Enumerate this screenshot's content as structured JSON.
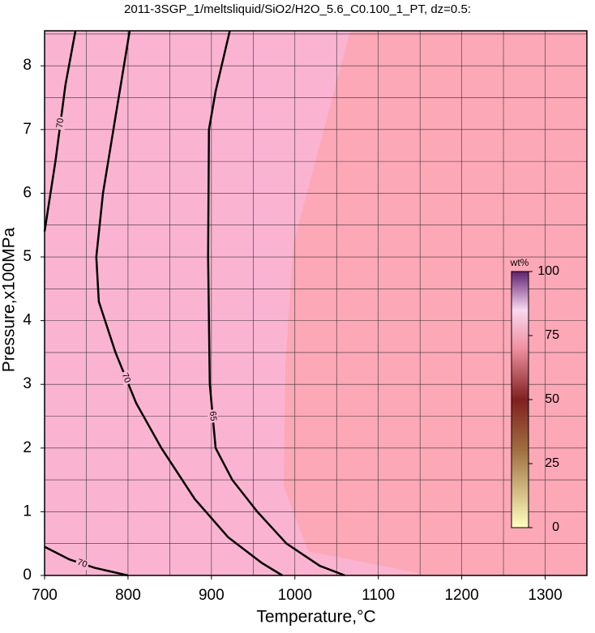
{
  "chart_data": {
    "type": "contour",
    "title": "2011-3SGP_1/meltsliquid/SiO2/H2O_5.6_C0.100_1_PT, dz=0.5:",
    "x_label": "Temperature,°C",
    "y_label": "Pressure,x100MPa",
    "xlim": [
      700,
      1350
    ],
    "ylim": [
      0,
      8.55
    ],
    "xticks": [
      700,
      800,
      900,
      1000,
      1100,
      1200,
      1300
    ],
    "yticks": [
      0,
      1,
      2,
      3,
      4,
      5,
      6,
      7,
      8
    ],
    "xgrid": [
      750,
      800,
      850,
      900,
      950,
      1000,
      1050,
      1100,
      1150,
      1200,
      1250,
      1300
    ],
    "ygrid": [
      0.5,
      1,
      1.5,
      2,
      2.5,
      3,
      3.5,
      4,
      4.5,
      5,
      5.5,
      6,
      6.5,
      7,
      7.5,
      8,
      8.5
    ],
    "contours": [
      {
        "level": "70",
        "x": [
          802,
          785,
          770,
          762,
          765,
          785,
          810,
          840,
          880,
          920,
          960,
          985
        ],
        "y": [
          8.55,
          7.2,
          6,
          5,
          4.3,
          3.5,
          2.7,
          2,
          1.2,
          0.6,
          0.2,
          0
        ]
      },
      {
        "level": "70",
        "x": [
          737,
          725,
          713,
          700
        ],
        "y": [
          8.55,
          7.7,
          6.5,
          5.4
        ]
      },
      {
        "level": "70",
        "x": [
          700,
          730,
          760,
          800
        ],
        "y": [
          0.45,
          0.25,
          0.12,
          0
        ]
      },
      {
        "level": "65",
        "x": [
          922,
          905,
          897,
          896,
          898,
          905,
          925,
          955,
          990,
          1030,
          1060
        ],
        "y": [
          8.55,
          7.6,
          7,
          5,
          3,
          2,
          1.5,
          1,
          0.5,
          0.15,
          0
        ]
      }
    ],
    "colorbar": {
      "label": "wt%",
      "lim": [
        0,
        100
      ],
      "ticks": [
        0,
        25,
        50,
        75,
        100
      ]
    }
  }
}
